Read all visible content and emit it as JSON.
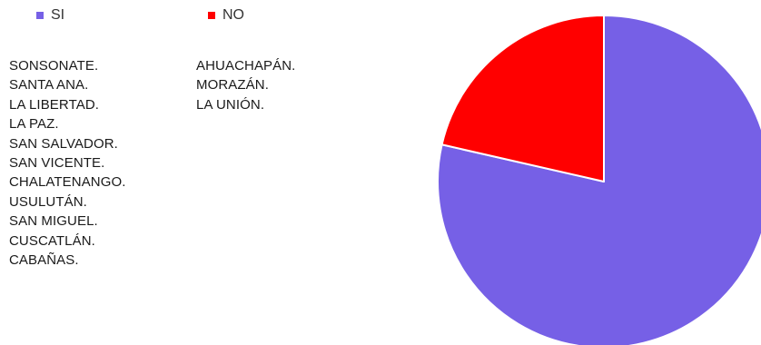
{
  "chart_data": {
    "type": "pie",
    "title": "",
    "legend_position": "top-left",
    "series": [
      {
        "name": "SI",
        "value": 11,
        "color": "#7660E6",
        "items": [
          "SONSONATE.",
          "SANTA ANA.",
          "LA LIBERTAD.",
          "LA PAZ.",
          "SAN SALVADOR.",
          "SAN VICENTE.",
          "CHALATENANGO.",
          "USULUTÁN.",
          "SAN MIGUEL.",
          "CUSCATLÁN.",
          "CABAÑAS."
        ]
      },
      {
        "name": "NO",
        "value": 3,
        "color": "#FF0000",
        "items": [
          "AHUACHAPÁN.",
          "MORAZÁN.",
          "LA UNIÓN."
        ]
      }
    ]
  }
}
